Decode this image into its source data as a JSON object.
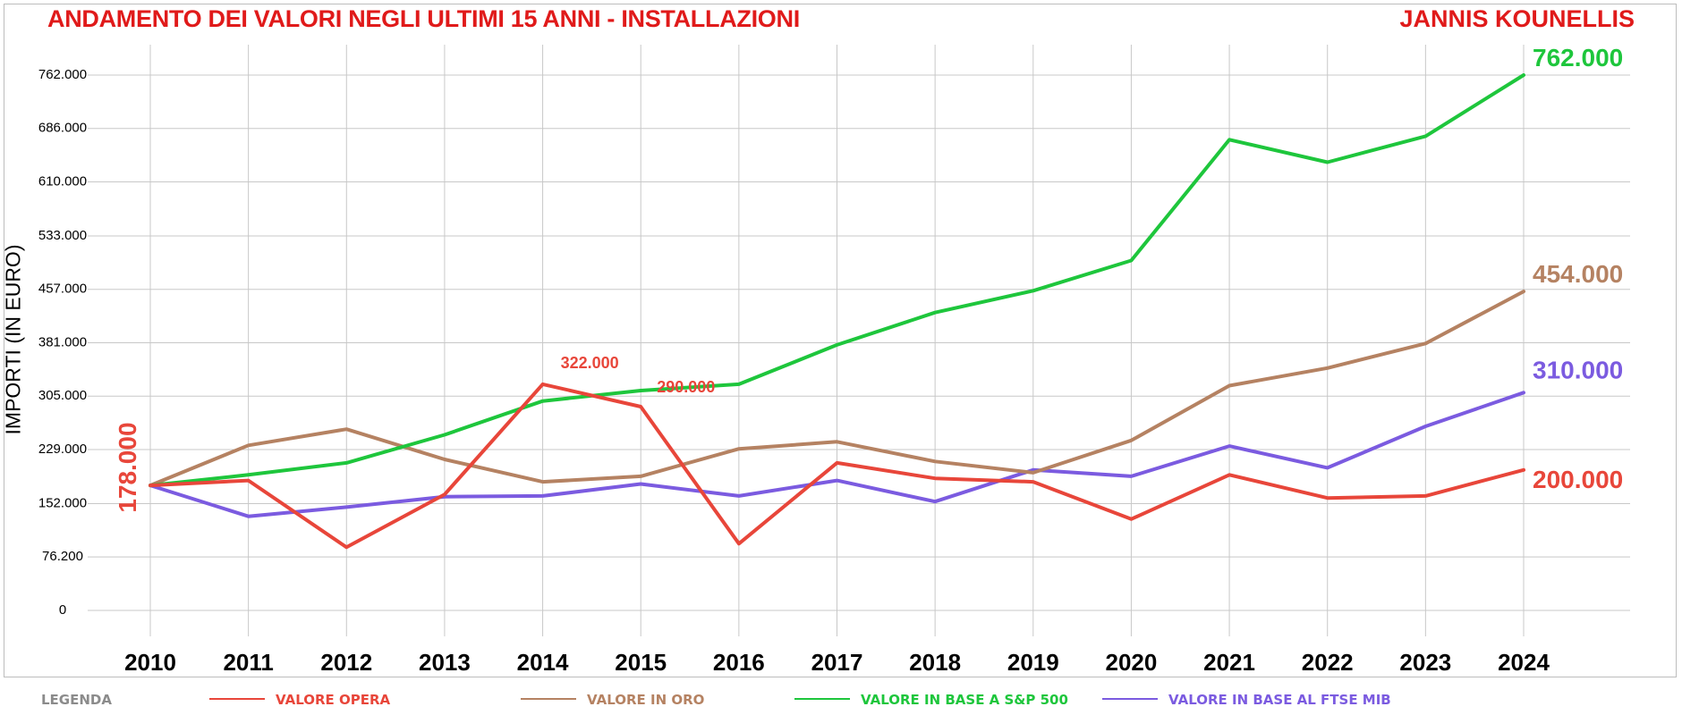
{
  "header": {
    "title": "ANDAMENTO DEI VALORI NEGLI ULTIMI 15 ANNI - INSTALLAZIONI",
    "author": "JANNIS KOUNELLIS"
  },
  "legend": {
    "title": "LEGENDA",
    "items": [
      {
        "label": "VALORE OPERA",
        "color": "#e8463a"
      },
      {
        "label": "VALORE IN ORO",
        "color": "#b58262"
      },
      {
        "label": "VALORE IN BASE A S&P 500",
        "color": "#1ec63c"
      },
      {
        "label": "VALORE IN BASE AL FTSE MIB",
        "color": "#7b5be0"
      }
    ]
  },
  "chart_data": {
    "type": "line",
    "title": "ANDAMENTO DEI VALORI NEGLI ULTIMI 15 ANNI - INSTALLAZIONI",
    "ylabel": "IMPORTI (IN EURO)",
    "xlabel": "",
    "ylim": [
      0,
      762000
    ],
    "yticks": [
      "0",
      "76.200",
      "152.000",
      "229.000",
      "305.000",
      "381.000",
      "457.000",
      "533.000",
      "610.000",
      "686.000",
      "762.000"
    ],
    "ytick_values": [
      0,
      76200,
      152000,
      229000,
      305000,
      381000,
      457000,
      533000,
      610000,
      686000,
      762000
    ],
    "x": [
      "2010",
      "2011",
      "2012",
      "2013",
      "2014",
      "2015",
      "2016",
      "2017",
      "2018",
      "2019",
      "2020",
      "2021",
      "2022",
      "2023",
      "2024"
    ],
    "grid": true,
    "legend_position": "bottom",
    "series": [
      {
        "name": "VALORE OPERA",
        "color": "#e8463a",
        "values": [
          178000,
          185000,
          90000,
          165000,
          322000,
          290000,
          95000,
          210000,
          188000,
          183000,
          130000,
          193000,
          160000,
          163000,
          200000
        ]
      },
      {
        "name": "VALORE IN ORO",
        "color": "#b58262",
        "values": [
          178000,
          235000,
          258000,
          215000,
          183000,
          191000,
          230000,
          240000,
          212000,
          196000,
          242000,
          320000,
          345000,
          380000,
          454000
        ]
      },
      {
        "name": "VALORE IN BASE A S&P 500",
        "color": "#1ec63c",
        "values": [
          178000,
          193000,
          210000,
          250000,
          298000,
          313000,
          322000,
          378000,
          424000,
          455000,
          498000,
          670000,
          638000,
          675000,
          762000
        ]
      },
      {
        "name": "VALORE IN BASE AL FTSE MIB",
        "color": "#7b5be0",
        "values": [
          178000,
          134000,
          147000,
          162000,
          163000,
          180000,
          163000,
          185000,
          155000,
          200000,
          191000,
          234000,
          203000,
          262000,
          310000
        ]
      }
    ],
    "annotations": [
      {
        "text": "178.000",
        "series": 0,
        "index": 0,
        "color": "#e8463a",
        "style": "start-rotated"
      },
      {
        "text": "322.000",
        "series": 0,
        "index": 4,
        "color": "#e8463a",
        "style": "inline"
      },
      {
        "text": "290.000",
        "series": 0,
        "index": 5,
        "color": "#e8463a",
        "style": "inline"
      },
      {
        "text": "762.000",
        "series": 2,
        "index": 14,
        "color": "#1ec63c",
        "style": "end"
      },
      {
        "text": "454.000",
        "series": 1,
        "index": 14,
        "color": "#b58262",
        "style": "end"
      },
      {
        "text": "310.000",
        "series": 3,
        "index": 14,
        "color": "#7b5be0",
        "style": "end"
      },
      {
        "text": "200.000",
        "series": 0,
        "index": 14,
        "color": "#e8463a",
        "style": "end"
      }
    ]
  }
}
